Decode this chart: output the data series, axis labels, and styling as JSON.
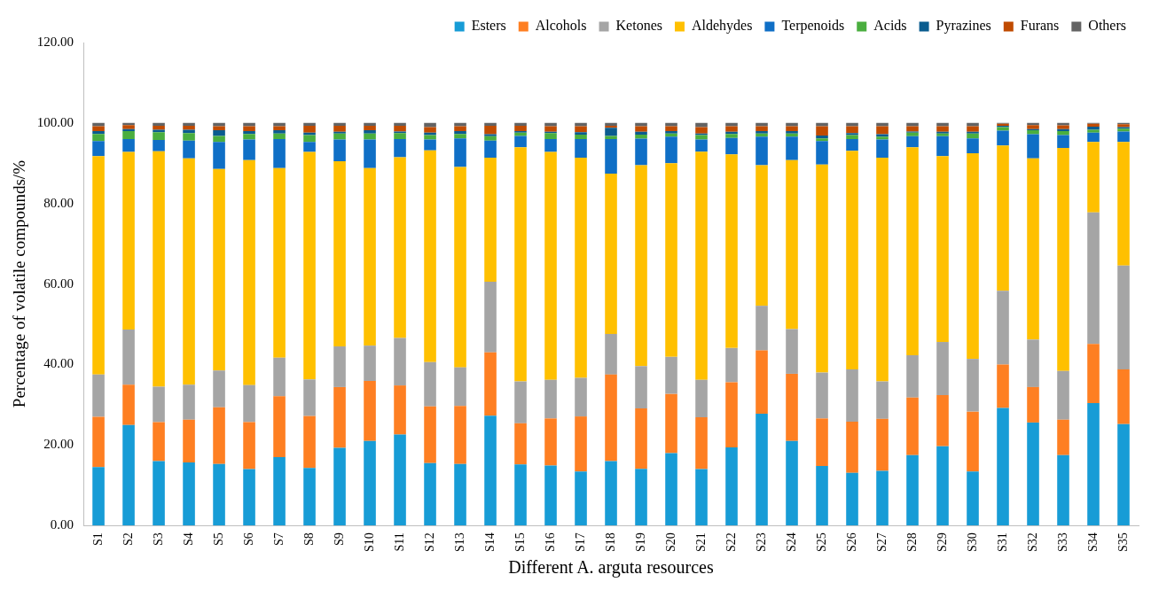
{
  "chart_data": {
    "type": "bar",
    "stacked": true,
    "xlabel": "Different A. arguta resources",
    "ylabel": "Percentage of volatile compounds/%",
    "legend": "top",
    "grid": false,
    "categories": [
      "S1",
      "S2",
      "S3",
      "S4",
      "S5",
      "S6",
      "S7",
      "S8",
      "S9",
      "S10",
      "S11",
      "S12",
      "S13",
      "S14",
      "S15",
      "S16",
      "S17",
      "S18",
      "S19",
      "S20",
      "S21",
      "S22",
      "S23",
      "S24",
      "S25",
      "S26",
      "S27",
      "S28",
      "S29",
      "S30",
      "S31",
      "S32",
      "S33",
      "S34",
      "S35"
    ],
    "ylim": [
      0,
      120
    ],
    "yticks": [
      {
        "value": 0,
        "label": "0.00"
      },
      {
        "value": 20,
        "label": "20.00"
      },
      {
        "value": 40,
        "label": "40.00"
      },
      {
        "value": 60,
        "label": "60.00"
      },
      {
        "value": 80,
        "label": "80.00"
      },
      {
        "value": 100,
        "label": "100.00"
      },
      {
        "value": 120,
        "label": "120.00"
      }
    ],
    "series": [
      {
        "name": "Esters",
        "color": "#179cd6",
        "values": [
          14.5,
          25,
          16,
          15.7,
          15.3,
          14,
          17,
          14.3,
          19.3,
          21,
          22.6,
          15.5,
          15.3,
          27.3,
          15.2,
          14.9,
          13.4,
          16,
          14.1,
          18,
          14,
          19.4,
          27.8,
          21,
          14.8,
          13.1,
          13.6,
          17.5,
          19.7,
          13.4,
          29.2,
          25.6,
          17.5,
          30.4,
          25.2
        ]
      },
      {
        "name": "Alcohols",
        "color": "#fe7f22",
        "values": [
          12.5,
          10,
          9.7,
          10.6,
          14.1,
          11.7,
          15.1,
          12.9,
          15.1,
          14.9,
          12.2,
          14.1,
          14.4,
          15.7,
          10.2,
          11.7,
          13.7,
          21.5,
          15,
          14.7,
          12.9,
          16.2,
          15.7,
          16.7,
          11.8,
          12.7,
          12.9,
          14.3,
          12.7,
          14.9,
          10.8,
          8.8,
          8.8,
          14.7,
          13.6
        ]
      },
      {
        "name": "Ketones",
        "color": "#a5a5a5",
        "values": [
          10.5,
          13.7,
          8.8,
          8.7,
          9.1,
          9.2,
          9.6,
          9.1,
          10.1,
          8.8,
          11.8,
          11,
          9.6,
          17.6,
          10.4,
          9.6,
          9.6,
          10.1,
          10.5,
          9.2,
          9.3,
          8.5,
          11.1,
          11.1,
          11.4,
          13,
          9.3,
          10.5,
          13.2,
          13.1,
          18.3,
          11.8,
          12.1,
          32.7,
          25.8
        ]
      },
      {
        "name": "Aldehydes",
        "color": "#ffc000",
        "values": [
          54.3,
          44.1,
          58.5,
          56.2,
          50.1,
          55.9,
          47.1,
          56.5,
          46,
          44.1,
          44.9,
          52.6,
          49.8,
          30.8,
          58.2,
          56.6,
          54.7,
          39.8,
          49.9,
          48.1,
          56.7,
          48.1,
          34.9,
          42,
          51.7,
          54.3,
          55.6,
          51.7,
          46.2,
          51.1,
          36.1,
          45,
          55.4,
          17.5,
          30.7
        ]
      },
      {
        "name": "Terpenoids",
        "color": "#0f6fc6",
        "values": [
          3.7,
          3.2,
          2.8,
          4.4,
          6.7,
          5.1,
          7.2,
          2.5,
          5.4,
          7.1,
          4.5,
          2.7,
          7.1,
          4.2,
          2.8,
          3.2,
          4.6,
          8.6,
          6.6,
          6.6,
          3,
          4.1,
          7.1,
          5.8,
          5.8,
          2.9,
          4.5,
          2.7,
          4.9,
          3.7,
          3.7,
          6,
          3.2,
          2.3,
          2.6
        ]
      },
      {
        "name": "Acids",
        "color": "#4aae3f",
        "values": [
          1.8,
          2,
          1.9,
          1.9,
          1.5,
          1.4,
          1.4,
          1.7,
          1.5,
          1.5,
          1.5,
          1.1,
          1.1,
          1.1,
          0.8,
          1.5,
          1.1,
          0.8,
          1,
          0.8,
          1.1,
          1,
          0.8,
          0.8,
          0.7,
          1,
          0.7,
          0.9,
          0.7,
          1.2,
          0.9,
          1,
          1,
          0.7,
          0.7
        ]
      },
      {
        "name": "Pyrazines",
        "color": "#0a5c8f",
        "values": [
          0.7,
          0.5,
          0.6,
          0.8,
          1.4,
          0.7,
          0.8,
          0.6,
          0.4,
          0.8,
          0.4,
          0.6,
          0.7,
          0.5,
          0.4,
          0.3,
          0.6,
          2,
          0.7,
          0.6,
          0.4,
          0.5,
          0.6,
          0.6,
          0.7,
          0.5,
          0.6,
          0.3,
          0.4,
          0.4,
          0.3,
          0.3,
          0.5,
          0.8,
          0.4
        ]
      },
      {
        "name": "Furans",
        "color": "#c04b00",
        "values": [
          1.2,
          1,
          1,
          1,
          1,
          1.2,
          1,
          1.7,
          1.5,
          1.1,
          1.4,
          1.4,
          1.2,
          2.1,
          1.3,
          1.4,
          1.5,
          0.5,
          1.4,
          1.2,
          1.6,
          1.4,
          1.2,
          1.2,
          2.3,
          1.7,
          2,
          1.3,
          1.4,
          1.4,
          0.5,
          1,
          0.9,
          0.7,
          0.7
        ]
      },
      {
        "name": "Others",
        "color": "#636363",
        "values": [
          0.8,
          0.5,
          0.7,
          0.7,
          0.8,
          0.8,
          0.8,
          0.7,
          0.7,
          0.7,
          0.7,
          1,
          0.8,
          0.7,
          0.7,
          0.8,
          0.8,
          0.7,
          0.8,
          0.8,
          1,
          0.8,
          0.8,
          0.8,
          0.8,
          0.8,
          0.8,
          0.8,
          0.8,
          0.8,
          0.2,
          0.5,
          0.6,
          0.2,
          0.3
        ]
      }
    ]
  }
}
